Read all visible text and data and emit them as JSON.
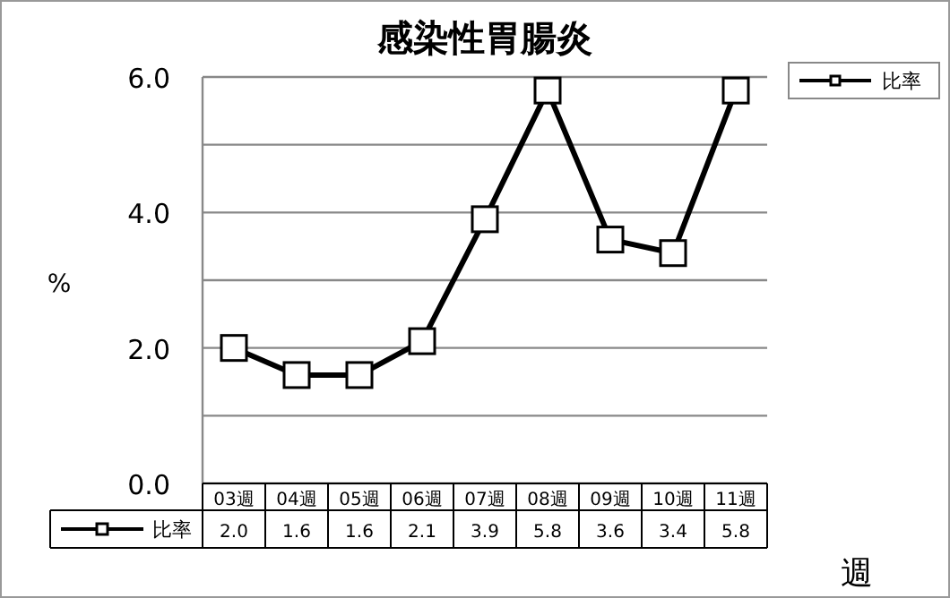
{
  "chart_data": {
    "type": "line",
    "title": "感染性胃腸炎",
    "ylabel": "%",
    "xlabel": "週",
    "categories": [
      "03週",
      "04週",
      "05週",
      "06週",
      "07週",
      "08週",
      "09週",
      "10週",
      "11週"
    ],
    "series": [
      {
        "name": "比率",
        "color": "#000000",
        "values": [
          2.0,
          1.6,
          1.6,
          2.1,
          3.9,
          5.8,
          3.6,
          3.4,
          5.8
        ],
        "value_labels": [
          "2.0",
          "1.6",
          "1.6",
          "2.1",
          "3.9",
          "5.8",
          "3.6",
          "3.4",
          "5.8"
        ]
      }
    ],
    "ylim": [
      0,
      6
    ],
    "yticks": [
      {
        "value": 0,
        "label": "0.0"
      },
      {
        "value": 1,
        "label": null
      },
      {
        "value": 2,
        "label": "2.0"
      },
      {
        "value": 3,
        "label": null
      },
      {
        "value": 4,
        "label": "4.0"
      },
      {
        "value": 5,
        "label": null
      },
      {
        "value": 6,
        "label": "6.0"
      }
    ],
    "grid": "y",
    "legend": "right",
    "marker": "square",
    "line_style": "solid"
  }
}
